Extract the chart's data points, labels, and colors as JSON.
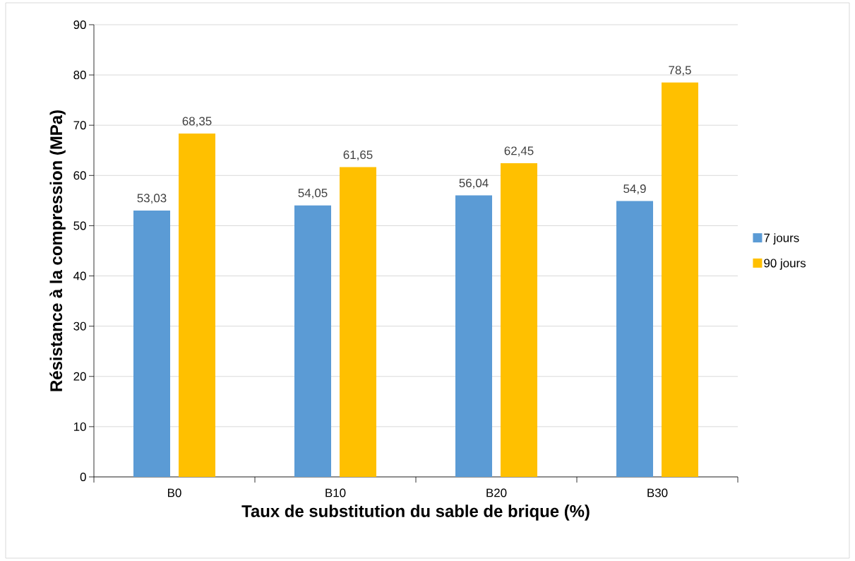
{
  "chart_data": {
    "type": "bar",
    "xlabel": "Taux de substitution du sable de brique (%)",
    "ylabel": "Résistance à la compression  (MPa)",
    "categories": [
      "B0",
      "B10",
      "B20",
      "B30"
    ],
    "series": [
      {
        "name": "7 jours",
        "color": "#5b9bd5",
        "values": [
          53.03,
          54.05,
          56.04,
          54.9
        ],
        "value_labels": [
          "53,03",
          "54,05",
          "56,04",
          "54,9"
        ]
      },
      {
        "name": "90 jours",
        "color": "#ffc000",
        "values": [
          68.35,
          61.65,
          62.45,
          78.5
        ],
        "value_labels": [
          "68,35",
          "61,65",
          "62,45",
          "78,5"
        ]
      }
    ],
    "ylim": [
      0,
      90
    ],
    "yticks": [
      0,
      10,
      20,
      30,
      40,
      50,
      60,
      70,
      80,
      90
    ],
    "grid": "y",
    "legend": "right"
  }
}
